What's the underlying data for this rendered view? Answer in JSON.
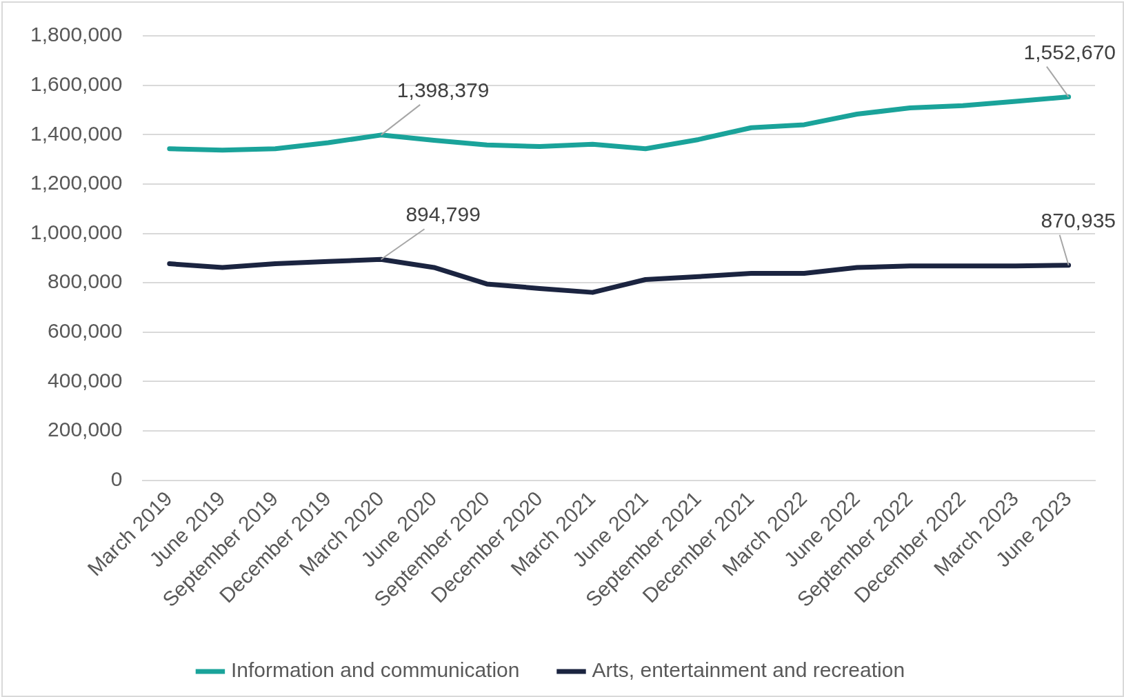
{
  "chart_data": {
    "type": "line",
    "categories": [
      "March 2019",
      "June 2019",
      "September 2019",
      "December 2019",
      "March 2020",
      "June 2020",
      "September 2020",
      "December 2020",
      "March 2021",
      "June 2021",
      "September 2021",
      "December 2021",
      "March 2022",
      "June 2022",
      "September 2022",
      "December 2022",
      "March 2023",
      "June 2023"
    ],
    "series": [
      {
        "name": "Information and communication",
        "color": "#1aa39a",
        "values": [
          1343000,
          1337000,
          1343000,
          1367000,
          1398379,
          1377000,
          1358000,
          1352000,
          1361000,
          1343000,
          1380000,
          1428000,
          1440000,
          1483000,
          1508000,
          1517000,
          1535000,
          1552670
        ]
      },
      {
        "name": "Arts, entertainment and recreation",
        "color": "#1b2440",
        "values": [
          877000,
          862000,
          877000,
          886000,
          894799,
          862000,
          795000,
          777000,
          761000,
          813000,
          825000,
          838000,
          838000,
          862000,
          868000,
          868000,
          868000,
          870935
        ]
      }
    ],
    "ylim": [
      0,
      1800000
    ],
    "yticks": [
      0,
      {
        "value": 200000,
        "label": "200,000"
      },
      {
        "value": 400000,
        "label": "400,000"
      },
      {
        "value": 600000,
        "label": "600,000"
      },
      {
        "value": 800000,
        "label": "800,000"
      },
      {
        "value": 1000000,
        "label": "1,000,000"
      },
      {
        "value": 1200000,
        "label": "1,200,000"
      },
      {
        "value": 1400000,
        "label": "1,400,000"
      },
      {
        "value": 1600000,
        "label": "1,600,000"
      },
      {
        "value": 1800000,
        "label": "1,800,000"
      }
    ],
    "grid": "y",
    "legend": "bottom",
    "marker": "none",
    "line_style": "solid",
    "annotations": [
      {
        "text": "1,398,379",
        "x": "March 2020",
        "y": 1398379
      },
      {
        "text": "1,552,670",
        "x": "June 2023",
        "y": 1552670
      },
      {
        "text": "894,799",
        "x": "March 2020",
        "y": 894799
      },
      {
        "text": "870,935",
        "x": "June 2023",
        "y": 870935
      }
    ]
  }
}
